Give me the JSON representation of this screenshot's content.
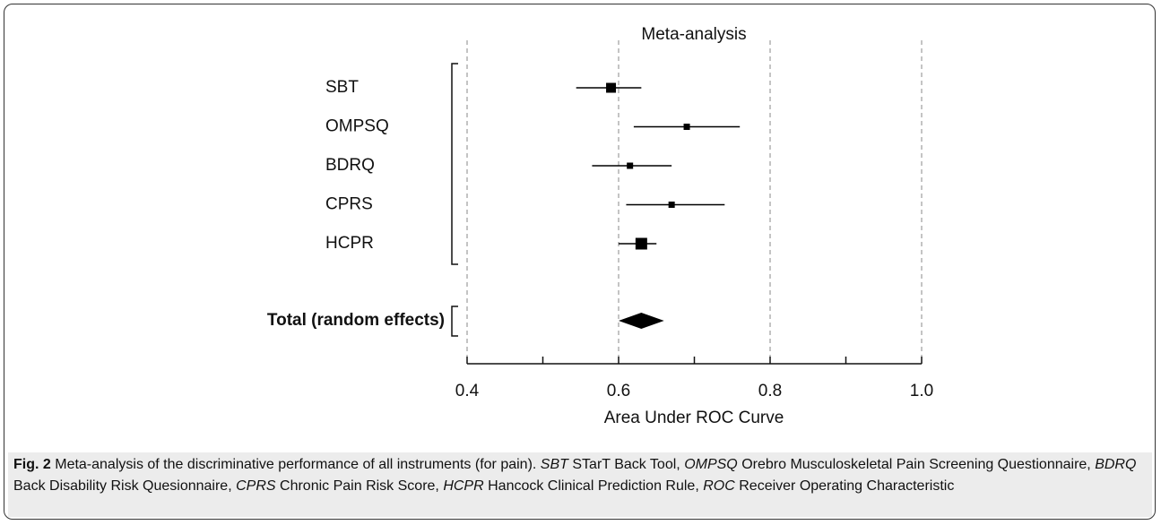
{
  "chart_data": {
    "type": "forest",
    "title": "Meta-analysis",
    "categories": [
      "SBT",
      "OMPSQ",
      "BDRQ",
      "CPRS",
      "HCPR"
    ],
    "values": [
      0.59,
      0.69,
      0.615,
      0.67,
      0.63
    ],
    "lower": [
      0.544,
      0.62,
      0.565,
      0.61,
      0.6
    ],
    "upper": [
      0.63,
      0.76,
      0.67,
      0.74,
      0.65
    ],
    "weights": [
      11,
      7,
      7,
      7,
      13
    ],
    "total": {
      "label": "Total (random effects)",
      "value": 0.63,
      "lower": 0.6,
      "upper": 0.66
    },
    "xlabel": "Area Under ROC Curve",
    "xlim": [
      0.4,
      1.0
    ],
    "xticks": [
      0.4,
      0.6,
      0.8,
      {
        "value": 1,
        "label": "1.0"
      }
    ],
    "minor_xticks": [
      0.5,
      0.7,
      0.9
    ],
    "grid": true,
    "color": "#000000"
  },
  "caption": {
    "figure_label": "Fig. 2",
    "text": "Meta-analysis of the discriminative performance of all instruments (for pain).",
    "abbreviations": [
      {
        "abbr": "SBT",
        "term": "STarT Back Tool,"
      },
      {
        "abbr": "OMPSQ",
        "term": "Orebro Musculoskeletal Pain Screening Questionnaire,"
      },
      {
        "abbr": "BDRQ",
        "term": "Back Disability Risk Quesionnaire,"
      },
      {
        "abbr": "CPRS",
        "term": "Chronic Pain Risk Score,"
      },
      {
        "abbr": "HCPR",
        "term": "Hancock Clinical Prediction Rule,"
      },
      {
        "abbr": "ROC",
        "term": "Receiver Operating Characteristic"
      }
    ]
  }
}
